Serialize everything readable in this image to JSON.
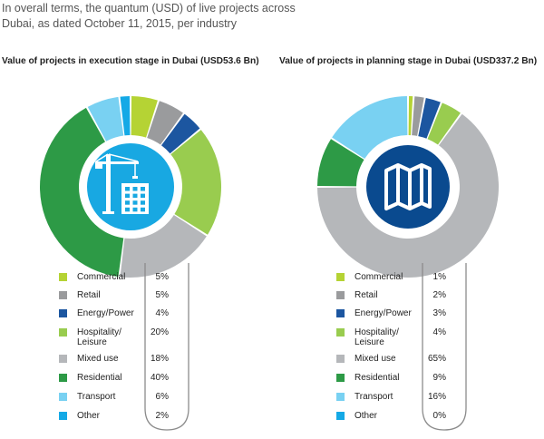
{
  "intro_text": "In overall terms, the quantum (USD) of live projects across Dubai, as dated October 11, 2015, per industry",
  "colors": {
    "Commercial": "#b5d334",
    "Retail": "#9a9b9d",
    "Energy/Power": "#1c56a0",
    "Hospitality/ Leisure": "#99cc4f",
    "Mixed use": "#b5b7ba",
    "Residential": "#2d9a46",
    "Transport": "#79d1f2",
    "Other": "#14a9e6",
    "icon_bg": "#18a8e2",
    "map_bg": "#0a4a8f",
    "map_ring": "#ffffff"
  },
  "chart_data": [
    {
      "type": "pie",
      "title": "Value of projects in execution stage in Dubai (USD53.6 Bn)",
      "icon": "construction-crane-building-icon",
      "slices": [
        {
          "label": "Commercial",
          "value": 5,
          "value_label": "5%"
        },
        {
          "label": "Retail",
          "value": 5,
          "value_label": "5%"
        },
        {
          "label": "Energy/Power",
          "value": 4,
          "value_label": "4%"
        },
        {
          "label": "Hospitality/ Leisure",
          "value": 20,
          "value_label": "20%"
        },
        {
          "label": "Mixed use",
          "value": 18,
          "value_label": "18%"
        },
        {
          "label": "Residential",
          "value": 40,
          "value_label": "40%"
        },
        {
          "label": "Transport",
          "value": 6,
          "value_label": "6%"
        },
        {
          "label": "Other",
          "value": 2,
          "value_label": "2%"
        }
      ]
    },
    {
      "type": "pie",
      "title": "Value of projects in planning stage in Dubai (USD337.2 Bn)",
      "icon": "folded-map-icon",
      "slices": [
        {
          "label": "Commercial",
          "value": 1,
          "value_label": "1%"
        },
        {
          "label": "Retail",
          "value": 2,
          "value_label": "2%"
        },
        {
          "label": "Energy/Power",
          "value": 3,
          "value_label": "3%"
        },
        {
          "label": "Hospitality/ Leisure",
          "value": 4,
          "value_label": "4%"
        },
        {
          "label": "Mixed use",
          "value": 65,
          "value_label": "65%"
        },
        {
          "label": "Residential",
          "value": 9,
          "value_label": "9%"
        },
        {
          "label": "Transport",
          "value": 16,
          "value_label": "16%"
        },
        {
          "label": "Other",
          "value": 0,
          "value_label": "0%"
        }
      ]
    }
  ]
}
